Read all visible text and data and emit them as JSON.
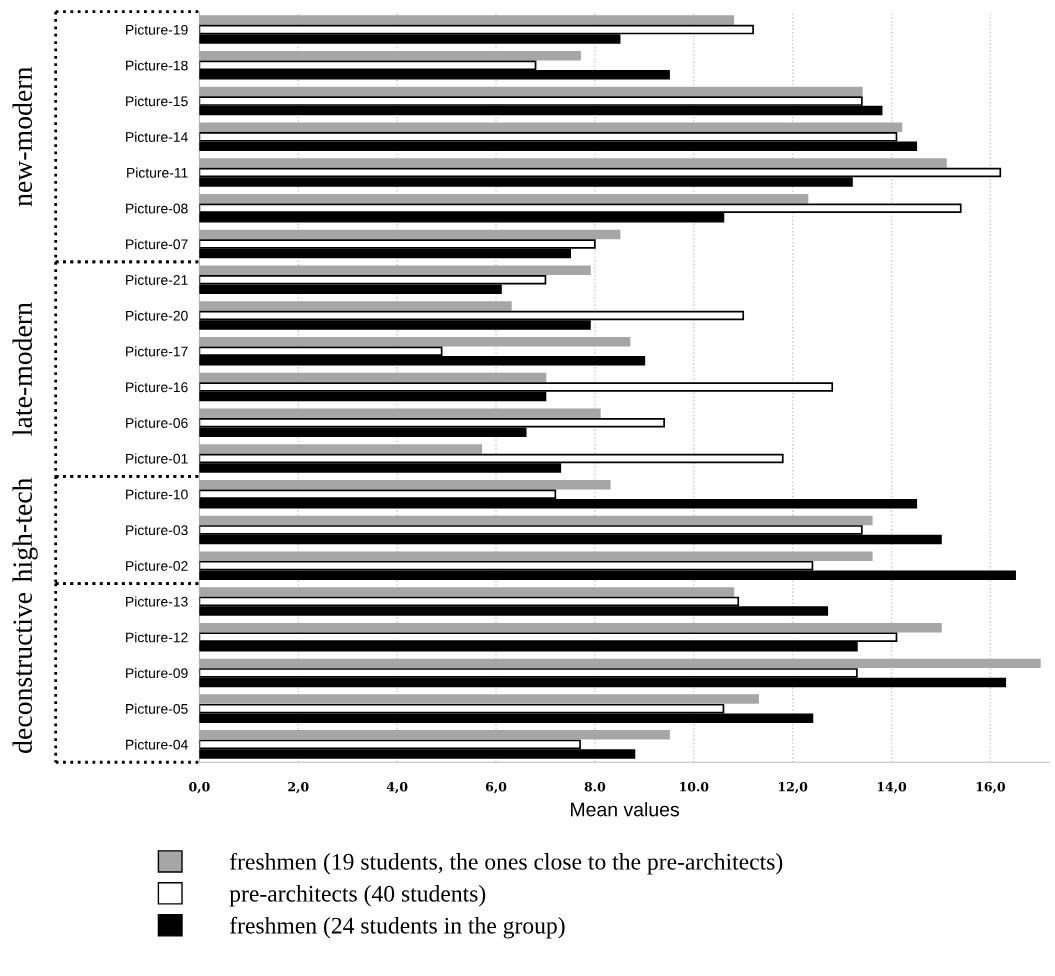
{
  "chart_data": {
    "type": "bar",
    "orientation": "horizontal",
    "xlabel": "Mean values",
    "categories": [
      "Picture-19",
      "Picture-18",
      "Picture-15",
      "Picture-14",
      "Picture-11",
      "Picture-08",
      "Picture-07",
      "Picture-21",
      "Picture-20",
      "Picture-17",
      "Picture-16",
      "Picture-06",
      "Picture-01",
      "Picture-10",
      "Picture-03",
      "Picture-02",
      "Picture-13",
      "Picture-12",
      "Picture-09",
      "Picture-05",
      "Picture-04"
    ],
    "series": [
      {
        "name": "freshmen (19 students, the ones close to the pre-architects)",
        "color": "#a6a6a6",
        "values": [
          10.8,
          7.7,
          13.4,
          14.2,
          15.1,
          12.3,
          8.5,
          7.9,
          6.3,
          8.7,
          7.0,
          8.1,
          5.7,
          8.3,
          13.6,
          13.6,
          10.8,
          15.0,
          17.0,
          11.3,
          9.5
        ]
      },
      {
        "name": "pre-architects (40 students)",
        "color": "#ffffff",
        "values": [
          11.2,
          6.8,
          13.4,
          14.1,
          16.2,
          15.4,
          8.0,
          7.0,
          11.0,
          4.9,
          12.8,
          9.4,
          11.8,
          7.2,
          13.4,
          12.4,
          10.9,
          14.1,
          13.3,
          10.6,
          7.7
        ]
      },
      {
        "name": "freshmen (24 students in the group)",
        "color": "#000000",
        "values": [
          8.5,
          9.5,
          13.8,
          14.5,
          13.2,
          10.6,
          7.5,
          6.1,
          7.9,
          9.0,
          7.0,
          6.6,
          7.3,
          14.5,
          15.0,
          16.5,
          12.7,
          13.3,
          16.3,
          12.4,
          8.8
        ]
      }
    ],
    "xlim": [
      0,
      17.2
    ],
    "xticks": [
      {
        "value": 0,
        "label": "0,0"
      },
      {
        "value": 2,
        "label": "2,0"
      },
      {
        "value": 4,
        "label": "4,0"
      },
      {
        "value": 6,
        "label": "6,0"
      },
      {
        "value": 8,
        "label": "8.0"
      },
      {
        "value": 10,
        "label": "10.0"
      },
      {
        "value": 12,
        "label": "12,0"
      },
      {
        "value": 14,
        "label": "14,0"
      },
      {
        "value": 16,
        "label": "16,0"
      }
    ],
    "annotations": [
      "new-modern",
      "late-modern",
      "high-tech",
      "deconstructive"
    ],
    "grid": "x",
    "legend": "bottom"
  }
}
